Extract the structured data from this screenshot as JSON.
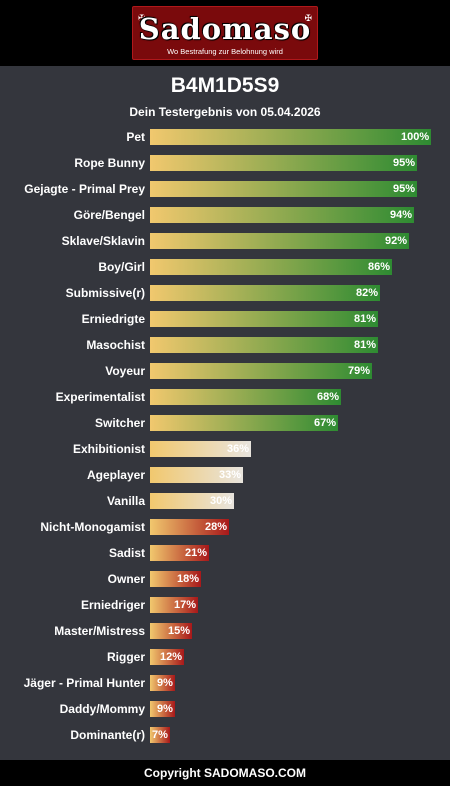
{
  "brand": {
    "name": "Sadomaso",
    "tagline": "Wo Bestrafung zur Belohnung wird"
  },
  "result": {
    "code": "B4M1D5S9",
    "subtitle": "Dein Testergebnis von 05.04.2026"
  },
  "colors": {
    "background": "#34363d",
    "header_footer": "#000000",
    "logo_red": "#7a0a0c",
    "bar_start": "#f1c86e",
    "bar_high_end": "#2e8b32",
    "bar_mid_end": "#e8e4de",
    "bar_low_end": "#a8181a"
  },
  "chart_data": {
    "type": "bar",
    "orientation": "horizontal",
    "title": "B4M1D5S9",
    "subtitle": "Dein Testergebnis von 05.04.2026",
    "xlim": [
      0,
      100
    ],
    "unit": "%",
    "categories": [
      "Pet",
      "Rope Bunny",
      "Gejagte - Primal Prey",
      "Göre/Bengel",
      "Sklave/Sklavin",
      "Boy/Girl",
      "Submissive(r)",
      "Erniedrigte",
      "Masochist",
      "Voyeur",
      "Experimentalist",
      "Switcher",
      "Exhibitionist",
      "Ageplayer",
      "Vanilla",
      "Nicht-Monogamist",
      "Sadist",
      "Owner",
      "Erniedriger",
      "Master/Mistress",
      "Rigger",
      "Jäger - Primal Hunter",
      "Daddy/Mommy",
      "Dominante(r)"
    ],
    "values": [
      100,
      95,
      95,
      94,
      92,
      86,
      82,
      81,
      81,
      79,
      68,
      67,
      36,
      33,
      30,
      28,
      21,
      18,
      17,
      15,
      12,
      9,
      9,
      7
    ],
    "labels": [
      "100%",
      "95%",
      "95%",
      "94%",
      "92%",
      "86%",
      "82%",
      "81%",
      "81%",
      "79%",
      "68%",
      "67%",
      "36%",
      "33%",
      "30%",
      "28%",
      "21%",
      "18%",
      "17%",
      "15%",
      "12%",
      "9%",
      "9%",
      "7%"
    ]
  },
  "footer": {
    "copyright": "Copyright SADOMASO.COM"
  }
}
